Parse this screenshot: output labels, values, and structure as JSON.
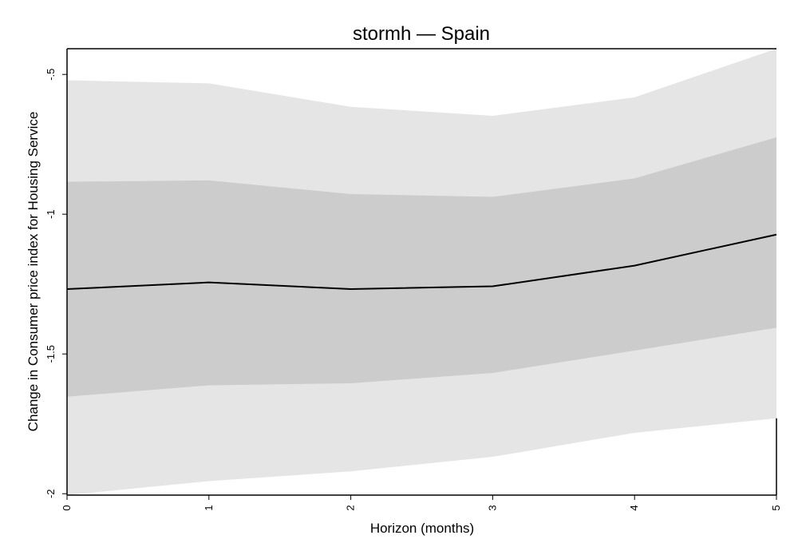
{
  "chart_data": {
    "type": "line",
    "title": "stormh — Spain",
    "xlabel": "Horizon (months)",
    "ylabel": "Change in Consumer price index for Housing Service",
    "x": [
      0,
      1,
      2,
      3,
      4,
      5
    ],
    "x_tick_labels": [
      "0",
      "1",
      "2",
      "3",
      "4",
      "5"
    ],
    "y_ticks": [
      -0.5,
      -1,
      -1.5,
      -2
    ],
    "y_tick_labels": [
      "-.5",
      "-1",
      "-1.5",
      "-2"
    ],
    "xlim": [
      0,
      5
    ],
    "ylim": [
      -2.005,
      -0.408
    ],
    "grid": false,
    "series": [
      {
        "name": "",
        "values": [
          -1.268,
          -1.244,
          -1.268,
          -1.258,
          -1.184,
          -1.073
        ]
      }
    ],
    "bands": [
      {
        "level": "outer",
        "color": "#e5e5e5",
        "lower": [
          -2.005,
          -1.955,
          -1.92,
          -1.868,
          -1.782,
          -1.73
        ],
        "upper": [
          -0.521,
          -0.532,
          -0.616,
          -0.648,
          -0.582,
          -0.408
        ]
      },
      {
        "level": "inner",
        "color": "#cccccc",
        "lower": [
          -1.653,
          -1.612,
          -1.605,
          -1.568,
          -1.488,
          -1.406
        ],
        "upper": [
          -0.884,
          -0.879,
          -0.928,
          -0.938,
          -0.872,
          -0.725
        ]
      }
    ],
    "line_color": "#000000"
  }
}
